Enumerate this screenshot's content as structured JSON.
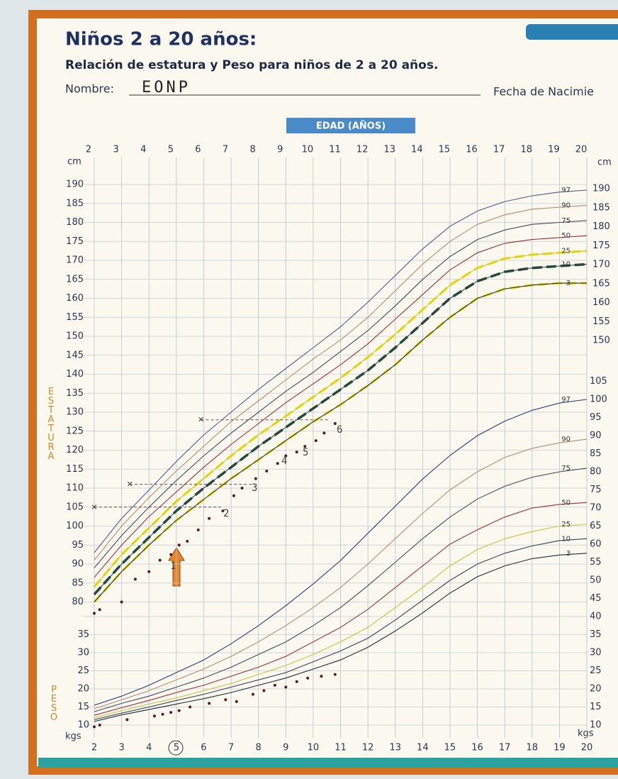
{
  "header": {
    "title": "Niños 2 a 20 años:",
    "subtitle": "Relación de estatura y Peso para niños de 2 a 20 años.",
    "name_label": "Nombre:",
    "name_value": "EONP",
    "birth_label": "Fecha de Nacimie"
  },
  "chart_data": {
    "type": "line",
    "x_title": "EDAD (AÑOS)",
    "height_title": "ESTATURA",
    "weight_title": "PESO",
    "height_unit": "cm",
    "weight_unit": "kgs",
    "xlim": [
      2,
      20
    ],
    "xticks": [
      2,
      3,
      4,
      5,
      6,
      7,
      8,
      9,
      10,
      11,
      12,
      13,
      14,
      15,
      16,
      17,
      18,
      19,
      20
    ],
    "ylim": [
      80,
      190
    ],
    "yticks": [
      80,
      85,
      90,
      95,
      100,
      105,
      110,
      115,
      120,
      125,
      130,
      135,
      140,
      145,
      150,
      155,
      160,
      165,
      170,
      175,
      180,
      185,
      190
    ],
    "y_right_ticks": [
      150,
      155,
      160,
      165,
      170,
      175,
      180,
      185,
      190
    ],
    "y2lim": [
      10,
      105
    ],
    "y2ticks": [
      10,
      15,
      20,
      25,
      30,
      35,
      40,
      45,
      50,
      55,
      60,
      65,
      70,
      75,
      80,
      85,
      90,
      95,
      100,
      105
    ],
    "y2_left_ticks": [
      10,
      15,
      20,
      25,
      30,
      35
    ],
    "grid": true,
    "x": [
      2,
      3,
      4,
      5,
      6,
      7,
      8,
      9,
      10,
      11,
      12,
      13,
      14,
      15,
      16,
      17,
      18,
      19,
      20
    ],
    "series": [
      {
        "name": "97",
        "color": "#4a5a8c",
        "values": [
          93,
          102,
          109.5,
          117,
          124,
          130,
          136,
          141.5,
          147,
          152.5,
          159,
          166,
          173,
          179,
          183,
          185.5,
          187,
          188,
          188.5
        ]
      },
      {
        "name": "90",
        "color": "#b88c6c",
        "values": [
          91,
          100,
          107.5,
          114.5,
          121,
          127.5,
          133,
          138.5,
          144,
          149,
          155,
          162,
          169,
          175,
          179.5,
          182,
          183.5,
          184,
          184.5
        ]
      },
      {
        "name": "75",
        "color": "#3e4c5e",
        "values": [
          89,
          97.5,
          105,
          112,
          118.5,
          124.5,
          130,
          135.5,
          140.5,
          146,
          151.5,
          158,
          165,
          171,
          175.5,
          178,
          179.5,
          180,
          180.5
        ]
      },
      {
        "name": "50",
        "color": "#9c2f3a",
        "values": [
          86.5,
          95,
          102.5,
          109,
          115.5,
          121.5,
          127,
          132.5,
          137.5,
          142.5,
          148,
          154.5,
          161,
          167.5,
          172,
          174.5,
          175.5,
          176,
          176.5
        ]
      },
      {
        "name": "25",
        "color": "#c9c23c",
        "highlight": "#f2e21a",
        "values": [
          84,
          92.5,
          99.5,
          106.5,
          112.5,
          118.5,
          124,
          129,
          134,
          139,
          144.5,
          150.5,
          157,
          163.5,
          168,
          170.5,
          171.5,
          172,
          172.5
        ]
      },
      {
        "name": "10",
        "color": "#33445a",
        "highlight": "#1f4a2e",
        "values": [
          82,
          90,
          97,
          104,
          110,
          115.5,
          121,
          126,
          131,
          136,
          141,
          147,
          153.5,
          160,
          164.5,
          167,
          168,
          168.5,
          169
        ]
      },
      {
        "name": "3",
        "color": "#1f2a3a",
        "highlight": "#f2e21a",
        "values": [
          80,
          88,
          95,
          101.5,
          107,
          112.5,
          117.5,
          122.5,
          127.5,
          132,
          137,
          142.5,
          149,
          155,
          160,
          162.5,
          163.5,
          164,
          164
        ]
      },
      {
        "name": "97",
        "color": "#2c3a78",
        "axis": "y2",
        "values": [
          15.5,
          18,
          21,
          24.5,
          28,
          32.5,
          37.5,
          43,
          49,
          55.5,
          63,
          70.5,
          78,
          84.5,
          90,
          94,
          97,
          99,
          100
        ]
      },
      {
        "name": "90",
        "color": "#b88c6c",
        "axis": "y2",
        "values": [
          14.5,
          17,
          19.5,
          22.5,
          25.5,
          29,
          33,
          37.5,
          42.5,
          48,
          54.5,
          61.5,
          68.5,
          75,
          80,
          84,
          86.5,
          88,
          89
        ]
      },
      {
        "name": "75",
        "color": "#3e4c5e",
        "axis": "y2",
        "values": [
          13.7,
          16,
          18,
          20.5,
          23,
          26,
          29.5,
          33,
          37.5,
          42.5,
          48.5,
          55,
          61.5,
          67.5,
          72.5,
          76,
          78.5,
          80,
          81
        ]
      },
      {
        "name": "50",
        "color": "#9c2f3a",
        "axis": "y2",
        "values": [
          12.7,
          14.8,
          16.8,
          19,
          21,
          23.5,
          26,
          29,
          33,
          37,
          42,
          48,
          54,
          60,
          64,
          67.5,
          70,
          71,
          71.5
        ]
      },
      {
        "name": "25",
        "color": "#c9c23c",
        "axis": "y2",
        "values": [
          12,
          14,
          15.8,
          17.5,
          19.5,
          21.5,
          24,
          26.5,
          29.5,
          33,
          37,
          42.5,
          48,
          54,
          58.5,
          61.5,
          63.5,
          65,
          65.5
        ]
      },
      {
        "name": "10",
        "color": "#33445a",
        "axis": "y2",
        "values": [
          11.5,
          13.3,
          15,
          16.8,
          18.5,
          20.5,
          22.5,
          24.5,
          27.5,
          30.5,
          34,
          39,
          44.5,
          50,
          54.5,
          57.5,
          59.5,
          61,
          61.5
        ]
      },
      {
        "name": "3",
        "color": "#1f2a3a",
        "axis": "y2",
        "values": [
          11,
          12.8,
          14.3,
          15.8,
          17.3,
          19,
          21,
          23,
          25.5,
          28,
          31.5,
          36,
          41,
          46.5,
          51,
          54,
          56,
          57,
          57.5
        ]
      }
    ],
    "patient_height": {
      "color": "#5a1a22",
      "x": [
        2.0,
        2.2,
        3.0,
        3.5,
        4.0,
        4.4,
        4.8,
        5.1,
        5.4,
        5.8,
        6.2,
        6.7,
        7.1,
        7.4,
        7.9,
        8.3,
        8.7,
        9.0,
        9.4,
        9.7,
        10.1,
        10.4,
        10.8
      ],
      "values": [
        77,
        78,
        80,
        86,
        88,
        91,
        92.5,
        95,
        96,
        99,
        102,
        104,
        108,
        110,
        112.5,
        114.5,
        116.5,
        118.5,
        119.5,
        121,
        122.5,
        124.5,
        127
      ]
    },
    "patient_weight": {
      "color": "#5a1a22",
      "axis": "y2",
      "x": [
        2.0,
        2.2,
        3.2,
        4.2,
        4.5,
        4.8,
        5.1,
        5.5,
        6.2,
        6.8,
        7.2,
        7.8,
        8.2,
        8.6,
        9.0,
        9.4,
        9.8,
        10.3,
        10.8
      ],
      "values": [
        9.5,
        10,
        11.5,
        12.5,
        13,
        13.5,
        14,
        15,
        16,
        17,
        16.5,
        18.5,
        19.5,
        21,
        20.5,
        22,
        23,
        23.5,
        24
      ]
    },
    "visit_labels": [
      "1",
      "2",
      "3",
      "4",
      "5",
      "6"
    ],
    "reference_marks": {
      "marker": "×",
      "x": [
        2.0,
        3.3,
        5.9
      ],
      "values": [
        105,
        111,
        128
      ]
    }
  }
}
